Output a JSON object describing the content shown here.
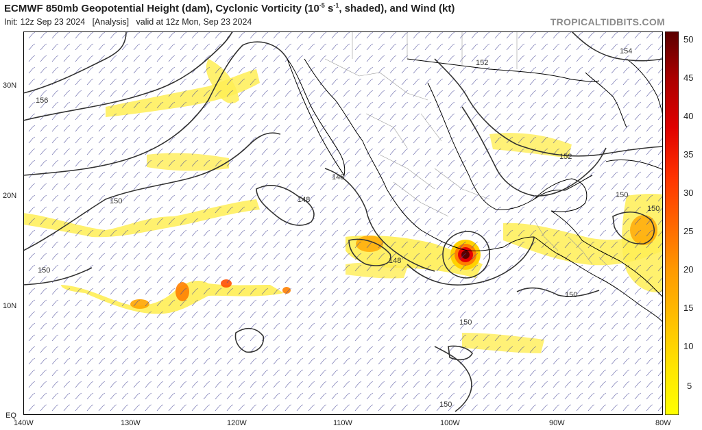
{
  "header": {
    "title_main": "ECMWF 850mb Geopotential Height (dam), Cyclonic Vorticity (10",
    "title_exp": "-5",
    "title_unit": " s",
    "title_exp2": "-1",
    "title_tail": ", shaded), and Wind (kt)",
    "init_text": "Init: 12z Sep 23 2024",
    "analysis_text": "[Analysis]",
    "valid_text": "valid at 12z Mon, Sep 23 2024",
    "brand": "TROPICALTIDBITS.COM"
  },
  "axes": {
    "lon_labels": [
      "140W",
      "130W",
      "120W",
      "110W",
      "100W",
      "90W",
      "80W"
    ],
    "lat_labels": [
      "30N",
      "20N",
      "10N",
      "EQ"
    ],
    "lon_range": [
      -140,
      -80
    ],
    "lat_range": [
      0,
      35
    ]
  },
  "contour_labels": [
    "156",
    "152",
    "154",
    "152",
    "150",
    "148",
    "148",
    "148",
    "150",
    "150",
    "150",
    "150",
    "150",
    "150"
  ],
  "colorbar": {
    "labels": [
      "50",
      "45",
      "40",
      "35",
      "30",
      "25",
      "20",
      "15",
      "10",
      "5"
    ],
    "range": [
      0,
      50
    ],
    "colors": [
      "#ffff00",
      "#ffd200",
      "#ffa500",
      "#ff7f00",
      "#ff5000",
      "#ff2000",
      "#e60000",
      "#c00000",
      "#8b0000",
      "#5a0000"
    ]
  },
  "colors": {
    "land": "#ffffff",
    "ocean": "#ffffff",
    "coast": "#000000",
    "contour": "#333333",
    "barb": "#4a4a9a",
    "vort_low": "#ffee55",
    "vort_high": "#8b0000"
  }
}
